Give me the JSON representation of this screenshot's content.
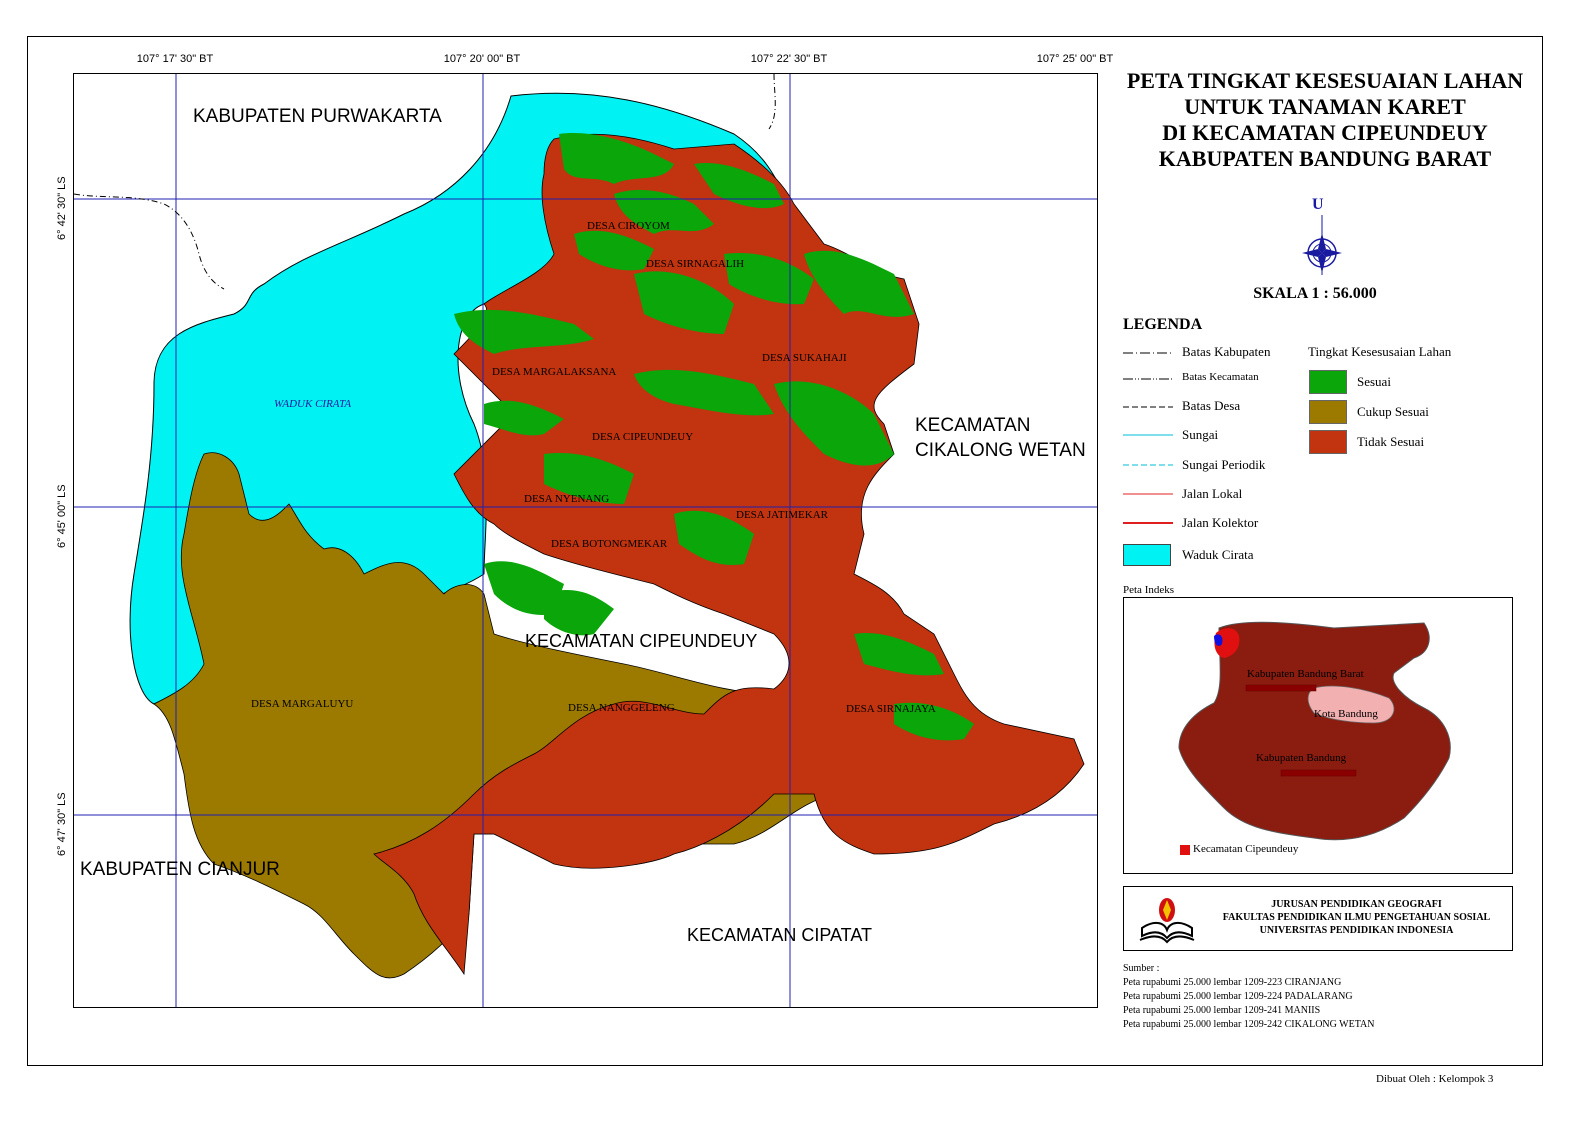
{
  "title": {
    "line1": "PETA TINGKAT KESESUAIAN LAHAN",
    "line2": "UNTUK TANAMAN KARET",
    "line3": "DI KECAMATAN CIPEUNDEUY",
    "line4": "KABUPATEN BANDUNG BARAT"
  },
  "north_letter": "U",
  "scale": "SKALA 1 : 56.000",
  "coords": {
    "top": [
      "107° 17' 30\" BT",
      "107° 20' 00\" BT",
      "107° 22' 30\" BT",
      "107° 25' 00\" BT"
    ],
    "left": [
      "6° 42' 30\" LS",
      "6° 45' 00\" LS",
      "6° 47' 30\" LS"
    ]
  },
  "regions": {
    "purwakarta": "KABUPATEN PURWAKARTA",
    "cikalong_1": "KECAMATAN",
    "cikalong_2": "CIKALONG WETAN",
    "cianjur": "KABUPATEN CIANJUR",
    "cipatat": "KECAMATAN CIPATAT",
    "cipeundeuy": "KECAMATAN CIPEUNDEUY",
    "waduk": "WADUK CIRATA"
  },
  "desa": [
    "DESA CIROYOM",
    "DESA SIRNAGALIH",
    "DESA SUKAHAJI",
    "DESA MARGALAKSANA",
    "DESA CIPEUNDEUY",
    "DESA NYENANG",
    "DESA JATIMEKAR",
    "DESA BOTONGMEKAR",
    "DESA MARGALUYU",
    "DESA NANGGELENG",
    "DESA SIRNAJAYA"
  ],
  "legend": {
    "title": "LEGENDA",
    "lines": [
      "Batas Kabupaten",
      "Batas Kecamatan",
      "Batas Desa",
      "Sungai",
      "Sungai Periodik",
      "Jalan Lokal",
      "Jalan Kolektor",
      "Waduk Cirata"
    ],
    "subtitle": "Tingkat Kesesusaian Lahan",
    "classes": [
      {
        "label": "Sesuai",
        "color": "#0aa60a"
      },
      {
        "label": "Cukup Sesuai",
        "color": "#9c7a00"
      },
      {
        "label": "Tidak Sesuai",
        "color": "#c2330f"
      }
    ],
    "water_color": "#00f2f2"
  },
  "index_map": {
    "label": "Peta Indeks",
    "kbb": "Kabupaten Bandung Barat",
    "kota": "Kota Bandung",
    "kab": "Kabupaten Bandung",
    "kec": "Kecamatan Cipeundeuy"
  },
  "institution": {
    "line1": "JURUSAN PENDIDIKAN GEOGRAFI",
    "line2": "FAKULTAS PENDIDIKAN ILMU PENGETAHUAN SOSIAL",
    "line3": "UNIVERSITAS PENDIDIKAN INDONESIA"
  },
  "sources": {
    "title": "Sumber :",
    "items": [
      "Peta rupabumi 25.000 lembar 1209-223 CIRANJANG",
      "Peta rupabumi 25.000 lembar 1209-224 PADALARANG",
      "Peta rupabumi 25.000 lembar 1209-241 MANIIS",
      "Peta rupabumi 25.000 lembar 1209-242 CIKALONG WETAN"
    ]
  },
  "credit": "Dibuat Oleh : Kelompok 3"
}
